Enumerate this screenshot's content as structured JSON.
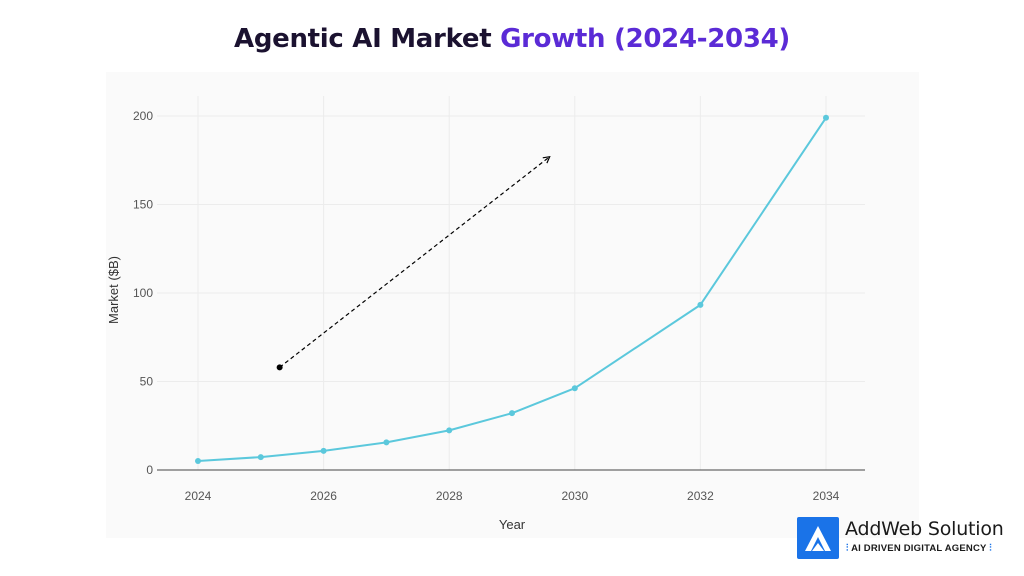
{
  "title": {
    "part1": "Agentic AI Market ",
    "part2": "Growth (2024-2034)",
    "colors": {
      "part1": "#1b1230",
      "part2": "#5b2bd6"
    }
  },
  "chart_data": {
    "type": "line",
    "title": "Agentic AI Market Growth (2024-2034)",
    "xlabel": "Year",
    "ylabel": "Market ($B)",
    "xlim": [
      2024,
      2034
    ],
    "ylim": [
      0,
      200
    ],
    "x_ticks": [
      2024,
      2026,
      2028,
      2030,
      2032,
      2034
    ],
    "y_ticks": [
      0,
      50,
      100,
      150,
      200
    ],
    "grid": true,
    "series": [
      {
        "color": "#5bc8dc",
        "x": [
          2024,
          2025,
          2026,
          2027,
          2028,
          2029,
          2030,
          2032,
          2034
        ],
        "y": [
          5.1,
          7.3,
          10.8,
          15.6,
          22.4,
          32.1,
          46.2,
          93.3,
          199.0
        ]
      }
    ],
    "annotations": [
      {
        "type": "arrow",
        "style": "dashed",
        "from": [
          2025.3,
          58
        ],
        "to": [
          2029.6,
          177
        ]
      }
    ]
  },
  "logo": {
    "name": "AddWeb Solution",
    "tagline": "AI DRIVEN DIGITAL AGENCY",
    "color": "#1a73e8"
  }
}
